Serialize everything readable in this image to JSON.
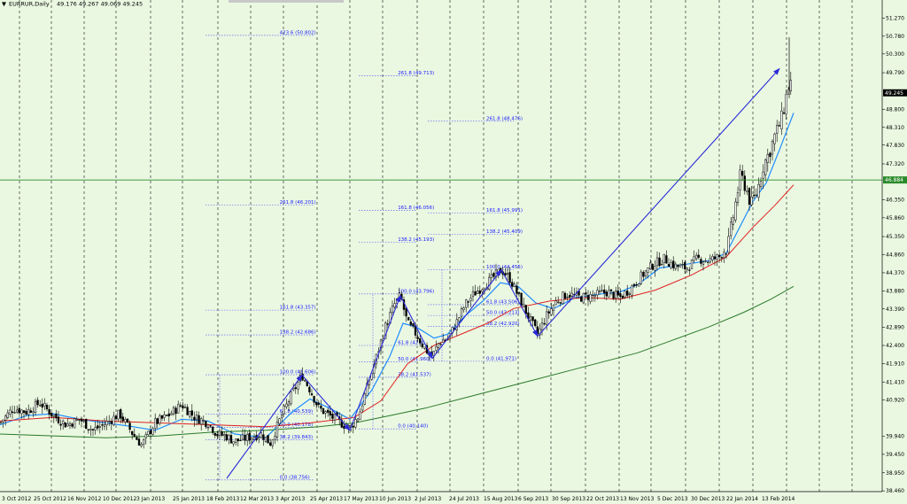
{
  "window": {
    "title": "EURRUR,Daily",
    "ohlc": "49.176 49.267 49.069 49.245",
    "dropdown_icon": "triangle-down-icon"
  },
  "colors": {
    "background": "#eaf8e1",
    "grid": "#000000",
    "candle": "#000000",
    "ma_fast": "#1f8cff",
    "ma_mid": "#e02020",
    "ma_slow": "#2a7a2a",
    "hline": "#2a8a2a",
    "arrows": "#2a2ad8",
    "fib": "#1a1aff",
    "price_label_bg": "#000000",
    "hline_label_bg": "#2a8a2a"
  },
  "chart_data": {
    "type": "candlestick",
    "symbol": "EURRUR",
    "timeframe": "Daily",
    "ylim": [
      38.44,
      51.76
    ],
    "y_ticks": [
      "51.270",
      "50.780",
      "50.300",
      "49.790",
      "48.800",
      "48.310",
      "47.830",
      "47.320",
      "46.350",
      "45.860",
      "45.350",
      "44.860",
      "44.370",
      "43.880",
      "43.390",
      "42.890",
      "42.400",
      "41.910",
      "41.410",
      "40.920",
      "39.940",
      "39.450",
      "38.950",
      "38.460"
    ],
    "x_ticks": [
      "3 Oct 2012",
      "25 Oct 2012",
      "16 Nov 2012",
      "10 Dec 2012",
      "3 Jan 2013",
      "25 Jan 2013",
      "18 Feb 2013",
      "12 Mar 2013",
      "3 Apr 2013",
      "25 Apr 2013",
      "17 May 2013",
      "10 Jun 2013",
      "2 Jul 2013",
      "24 Jul 2013",
      "15 Aug 2013",
      "6 Sep 2013",
      "30 Sep 2013",
      "22 Oct 2013",
      "13 Nov 2013",
      "5 Dec 2013",
      "30 Dec 2013",
      "22 Jan 2014",
      "13 Feb 2014"
    ],
    "current_price": "49.245",
    "horizontal_line": "46.884",
    "close_path": [
      [
        0,
        40.3
      ],
      [
        15,
        40.7
      ],
      [
        30,
        40.6
      ],
      [
        45,
        40.85
      ],
      [
        60,
        40.5
      ],
      [
        75,
        40.25
      ],
      [
        90,
        40.4
      ],
      [
        105,
        40.1
      ],
      [
        120,
        40.3
      ],
      [
        135,
        40.55
      ],
      [
        150,
        40.0
      ],
      [
        160,
        39.7
      ],
      [
        175,
        40.3
      ],
      [
        190,
        40.5
      ],
      [
        205,
        40.8
      ],
      [
        220,
        40.45
      ],
      [
        235,
        40.3
      ],
      [
        245,
        40.0
      ],
      [
        255,
        39.95
      ],
      [
        265,
        39.8
      ],
      [
        280,
        39.9
      ],
      [
        295,
        40.0
      ],
      [
        305,
        39.75
      ],
      [
        318,
        40.5
      ],
      [
        330,
        41.1
      ],
      [
        341,
        41.6
      ],
      [
        350,
        41.2
      ],
      [
        360,
        40.7
      ],
      [
        372,
        40.5
      ],
      [
        385,
        40.3
      ],
      [
        395,
        40.15
      ],
      [
        405,
        40.5
      ],
      [
        415,
        41.3
      ],
      [
        425,
        42.1
      ],
      [
        435,
        42.9
      ],
      [
        445,
        43.5
      ],
      [
        452,
        43.75
      ],
      [
        460,
        43.0
      ],
      [
        470,
        42.7
      ],
      [
        480,
        42.3
      ],
      [
        488,
        42.1
      ],
      [
        496,
        42.5
      ],
      [
        506,
        42.6
      ],
      [
        515,
        43.0
      ],
      [
        525,
        43.5
      ],
      [
        535,
        43.8
      ],
      [
        545,
        44.0
      ],
      [
        555,
        44.2
      ],
      [
        566,
        44.45
      ],
      [
        576,
        44.2
      ],
      [
        586,
        43.7
      ],
      [
        596,
        43.2
      ],
      [
        607,
        42.7
      ],
      [
        617,
        43.2
      ],
      [
        628,
        43.6
      ],
      [
        640,
        43.8
      ],
      [
        655,
        43.7
      ],
      [
        670,
        43.75
      ],
      [
        685,
        43.85
      ],
      [
        700,
        43.7
      ],
      [
        712,
        43.95
      ],
      [
        725,
        44.3
      ],
      [
        738,
        44.6
      ],
      [
        750,
        44.75
      ],
      [
        762,
        44.55
      ],
      [
        775,
        44.5
      ],
      [
        787,
        44.75
      ],
      [
        800,
        44.7
      ],
      [
        812,
        44.8
      ],
      [
        822,
        45.1
      ],
      [
        830,
        46.2
      ],
      [
        836,
        47.0
      ],
      [
        842,
        46.7
      ],
      [
        848,
        46.2
      ],
      [
        855,
        46.6
      ],
      [
        862,
        47.3
      ],
      [
        868,
        47.6
      ],
      [
        875,
        48.1
      ],
      [
        882,
        48.5
      ],
      [
        888,
        49.2
      ],
      [
        892,
        49.6
      ],
      [
        896,
        49.245
      ]
    ],
    "series": [
      {
        "name": "",
        "points": [
          [
            0,
            40.25
          ],
          [
            30,
            40.5
          ],
          [
            60,
            40.55
          ],
          [
            90,
            40.4
          ],
          [
            120,
            40.3
          ],
          [
            150,
            40.2
          ],
          [
            175,
            40.1
          ],
          [
            205,
            40.4
          ],
          [
            235,
            40.35
          ],
          [
            265,
            40.0
          ],
          [
            300,
            39.9
          ],
          [
            330,
            40.6
          ],
          [
            350,
            40.95
          ],
          [
            372,
            40.7
          ],
          [
            395,
            40.4
          ],
          [
            420,
            41.2
          ],
          [
            440,
            42.1
          ],
          [
            455,
            43.0
          ],
          [
            470,
            42.9
          ],
          [
            490,
            42.6
          ],
          [
            505,
            42.7
          ],
          [
            525,
            43.2
          ],
          [
            545,
            43.6
          ],
          [
            565,
            44.1
          ],
          [
            585,
            44.0
          ],
          [
            605,
            43.55
          ],
          [
            625,
            43.4
          ],
          [
            650,
            43.7
          ],
          [
            680,
            43.8
          ],
          [
            700,
            43.85
          ],
          [
            720,
            44.05
          ],
          [
            745,
            44.5
          ],
          [
            775,
            44.6
          ],
          [
            800,
            44.7
          ],
          [
            820,
            44.9
          ],
          [
            835,
            45.6
          ],
          [
            850,
            46.3
          ],
          [
            865,
            46.8
          ],
          [
            880,
            47.7
          ],
          [
            896,
            48.7
          ]
        ]
      },
      {
        "name": "",
        "points": [
          [
            0,
            40.35
          ],
          [
            60,
            40.45
          ],
          [
            120,
            40.35
          ],
          [
            180,
            40.3
          ],
          [
            240,
            40.25
          ],
          [
            300,
            40.2
          ],
          [
            350,
            40.3
          ],
          [
            400,
            40.45
          ],
          [
            430,
            40.9
          ],
          [
            460,
            41.9
          ],
          [
            490,
            42.4
          ],
          [
            520,
            42.7
          ],
          [
            550,
            43.0
          ],
          [
            580,
            43.4
          ],
          [
            620,
            43.6
          ],
          [
            660,
            43.7
          ],
          [
            700,
            43.65
          ],
          [
            740,
            43.9
          ],
          [
            780,
            44.3
          ],
          [
            820,
            44.8
          ],
          [
            850,
            45.6
          ],
          [
            875,
            46.2
          ],
          [
            896,
            46.75
          ]
        ]
      },
      {
        "name": "",
        "points": [
          [
            0,
            40.0
          ],
          [
            60,
            39.95
          ],
          [
            120,
            39.9
          ],
          [
            180,
            39.95
          ],
          [
            240,
            40.05
          ],
          [
            300,
            40.1
          ],
          [
            360,
            40.2
          ],
          [
            400,
            40.3
          ],
          [
            440,
            40.5
          ],
          [
            480,
            40.7
          ],
          [
            520,
            40.95
          ],
          [
            560,
            41.2
          ],
          [
            600,
            41.45
          ],
          [
            640,
            41.7
          ],
          [
            680,
            41.95
          ],
          [
            720,
            42.2
          ],
          [
            760,
            42.55
          ],
          [
            800,
            42.9
          ],
          [
            840,
            43.3
          ],
          [
            870,
            43.65
          ],
          [
            896,
            44.0
          ]
        ]
      }
    ],
    "fib_levels": [
      {
        "label": "423.6 (50.802)",
        "x0": 232,
        "x1": 355,
        "y": 50.802
      },
      {
        "label": "261.8 (49.713)",
        "x0": 405,
        "x1": 470,
        "y": 49.713
      },
      {
        "label": "261.8 (48.476)",
        "x0": 483,
        "x1": 580,
        "y": 48.476
      },
      {
        "label": "261.8 (46.201)",
        "x0": 232,
        "x1": 355,
        "y": 46.201
      },
      {
        "label": "161.8 (46.056)",
        "x0": 405,
        "x1": 470,
        "y": 46.056
      },
      {
        "label": "161.8 (45.991)",
        "x0": 483,
        "x1": 580,
        "y": 45.991
      },
      {
        "label": "138.2 (45.409)",
        "x0": 483,
        "x1": 580,
        "y": 45.409
      },
      {
        "label": "138.2 (45.193)",
        "x0": 405,
        "x1": 470,
        "y": 45.193
      },
      {
        "label": "100.0 (44.455)",
        "x0": 483,
        "x1": 580,
        "y": 44.455
      },
      {
        "label": "100.0 (43.796)",
        "x0": 405,
        "x1": 470,
        "y": 43.796
      },
      {
        "label": "161.8 (43.357)",
        "x0": 232,
        "x1": 355,
        "y": 43.357
      },
      {
        "label": "61.8 (43.506)",
        "x0": 483,
        "x1": 580,
        "y": 43.506
      },
      {
        "label": "50.0 (43.213)",
        "x0": 483,
        "x1": 580,
        "y": 43.213
      },
      {
        "label": "38.2 (42.920)",
        "x0": 483,
        "x1": 580,
        "y": 42.92
      },
      {
        "label": "138.2 (42.686)",
        "x0": 232,
        "x1": 355,
        "y": 42.686
      },
      {
        "label": "61.8 (42.4)",
        "x0": 405,
        "x1": 470,
        "y": 42.4
      },
      {
        "label": "50.0 (41.960)",
        "x0": 405,
        "x1": 470,
        "y": 41.96
      },
      {
        "label": "0.0 (41.971)",
        "x0": 483,
        "x1": 580,
        "y": 41.971
      },
      {
        "label": "38.2 (41.537)",
        "x0": 405,
        "x1": 470,
        "y": 41.537
      },
      {
        "label": "100.0 (41.606)",
        "x0": 232,
        "x1": 355,
        "y": 41.606
      },
      {
        "label": "61.8 (40.539)",
        "x0": 232,
        "x1": 355,
        "y": 40.539
      },
      {
        "label": "50.0 (40.178)",
        "x0": 232,
        "x1": 355,
        "y": 40.178
      },
      {
        "label": "0.0 (40.140)",
        "x0": 405,
        "x1": 470,
        "y": 40.14
      },
      {
        "label": "38.2 (39.843)",
        "x0": 232,
        "x1": 355,
        "y": 39.843
      },
      {
        "label": "0.0 (38.756)",
        "x0": 232,
        "x1": 355,
        "y": 38.756
      }
    ],
    "arrows": [
      {
        "x1": 256,
        "y1": 38.8,
        "x2": 341,
        "y2": 41.6
      },
      {
        "x1": 341,
        "y1": 41.6,
        "x2": 395,
        "y2": 40.1
      },
      {
        "x1": 395,
        "y1": 40.1,
        "x2": 452,
        "y2": 43.75
      },
      {
        "x1": 452,
        "y1": 43.75,
        "x2": 488,
        "y2": 42.05
      },
      {
        "x1": 488,
        "y1": 42.05,
        "x2": 566,
        "y2": 44.45
      },
      {
        "x1": 566,
        "y1": 44.45,
        "x2": 607,
        "y2": 42.65
      },
      {
        "x1": 607,
        "y1": 42.65,
        "x2": 880,
        "y2": 49.9
      }
    ]
  }
}
